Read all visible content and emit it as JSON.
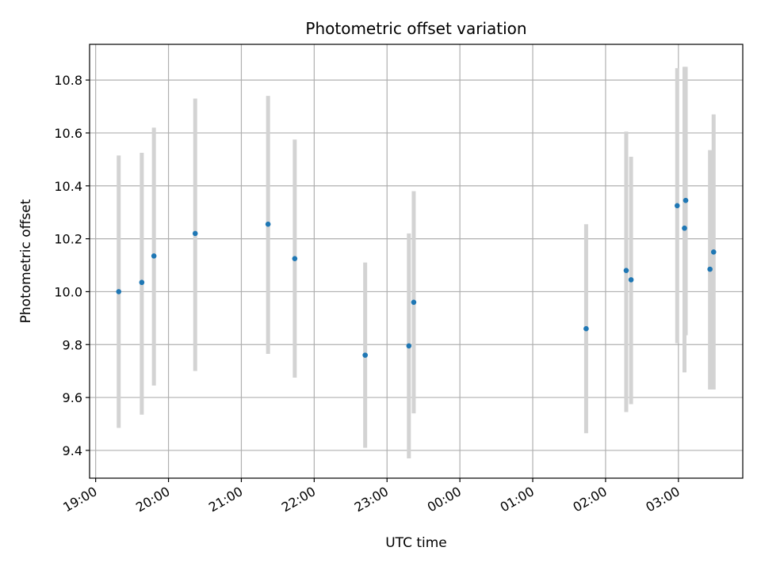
{
  "chart_data": {
    "type": "scatter",
    "title": "Photometric offset variation",
    "xlabel": "UTC time",
    "ylabel": "Photometric offset",
    "grid": true,
    "xlim": [
      "2000-01-01T18:55",
      "2000-01-02T03:53"
    ],
    "ylim": [
      9.295,
      10.935
    ],
    "xticks": [
      {
        "t": "2000-01-01T19:00",
        "label": "19:00"
      },
      {
        "t": "2000-01-01T20:00",
        "label": "20:00"
      },
      {
        "t": "2000-01-01T21:00",
        "label": "21:00"
      },
      {
        "t": "2000-01-01T22:00",
        "label": "22:00"
      },
      {
        "t": "2000-01-01T23:00",
        "label": "23:00"
      },
      {
        "t": "2000-01-02T00:00",
        "label": "00:00"
      },
      {
        "t": "2000-01-02T01:00",
        "label": "01:00"
      },
      {
        "t": "2000-01-02T02:00",
        "label": "02:00"
      },
      {
        "t": "2000-01-02T03:00",
        "label": "03:00"
      }
    ],
    "yticks": [
      {
        "v": 9.4,
        "label": "9.4"
      },
      {
        "v": 9.6,
        "label": "9.6"
      },
      {
        "v": 9.8,
        "label": "9.8"
      },
      {
        "v": 10.0,
        "label": "10.0"
      },
      {
        "v": 10.2,
        "label": "10.2"
      },
      {
        "v": 10.4,
        "label": "10.4"
      },
      {
        "v": 10.6,
        "label": "10.6"
      },
      {
        "v": 10.8,
        "label": "10.8"
      }
    ],
    "colors": {
      "point": "#1f77b4",
      "errorbar": "#d3d3d3",
      "grid": "#b0b0b0"
    },
    "points": [
      {
        "t": "2000-01-01T19:19",
        "y": 10.0,
        "lo": 9.485,
        "hi": 10.515
      },
      {
        "t": "2000-01-01T19:38",
        "y": 10.035,
        "lo": 9.535,
        "hi": 10.525
      },
      {
        "t": "2000-01-01T19:48",
        "y": 10.135,
        "lo": 9.645,
        "hi": 10.62
      },
      {
        "t": "2000-01-01T20:22",
        "y": 10.22,
        "lo": 9.7,
        "hi": 10.73
      },
      {
        "t": "2000-01-01T21:22",
        "y": 10.255,
        "lo": 9.765,
        "hi": 10.74
      },
      {
        "t": "2000-01-01T21:44",
        "y": 10.125,
        "lo": 9.675,
        "hi": 10.575
      },
      {
        "t": "2000-01-01T22:42",
        "y": 9.76,
        "lo": 9.41,
        "hi": 10.11
      },
      {
        "t": "2000-01-01T23:18",
        "y": 9.795,
        "lo": 9.37,
        "hi": 10.22
      },
      {
        "t": "2000-01-01T23:22",
        "y": 9.96,
        "lo": 9.54,
        "hi": 10.38
      },
      {
        "t": "2000-01-02T01:44",
        "y": 9.86,
        "lo": 9.465,
        "hi": 10.255
      },
      {
        "t": "2000-01-02T02:17",
        "y": 10.08,
        "lo": 9.545,
        "hi": 10.605
      },
      {
        "t": "2000-01-02T02:21",
        "y": 10.045,
        "lo": 9.575,
        "hi": 10.51
      },
      {
        "t": "2000-01-02T02:59",
        "y": 10.325,
        "lo": 9.805,
        "hi": 10.845
      },
      {
        "t": "2000-01-02T03:05",
        "y": 10.24,
        "lo": 9.695,
        "hi": 10.85
      },
      {
        "t": "2000-01-02T03:06",
        "y": 10.345,
        "lo": 9.835,
        "hi": 10.85
      },
      {
        "t": "2000-01-02T03:26",
        "y": 10.085,
        "lo": 9.63,
        "hi": 10.535
      },
      {
        "t": "2000-01-02T03:29",
        "y": 10.15,
        "lo": 9.63,
        "hi": 10.67
      }
    ]
  }
}
